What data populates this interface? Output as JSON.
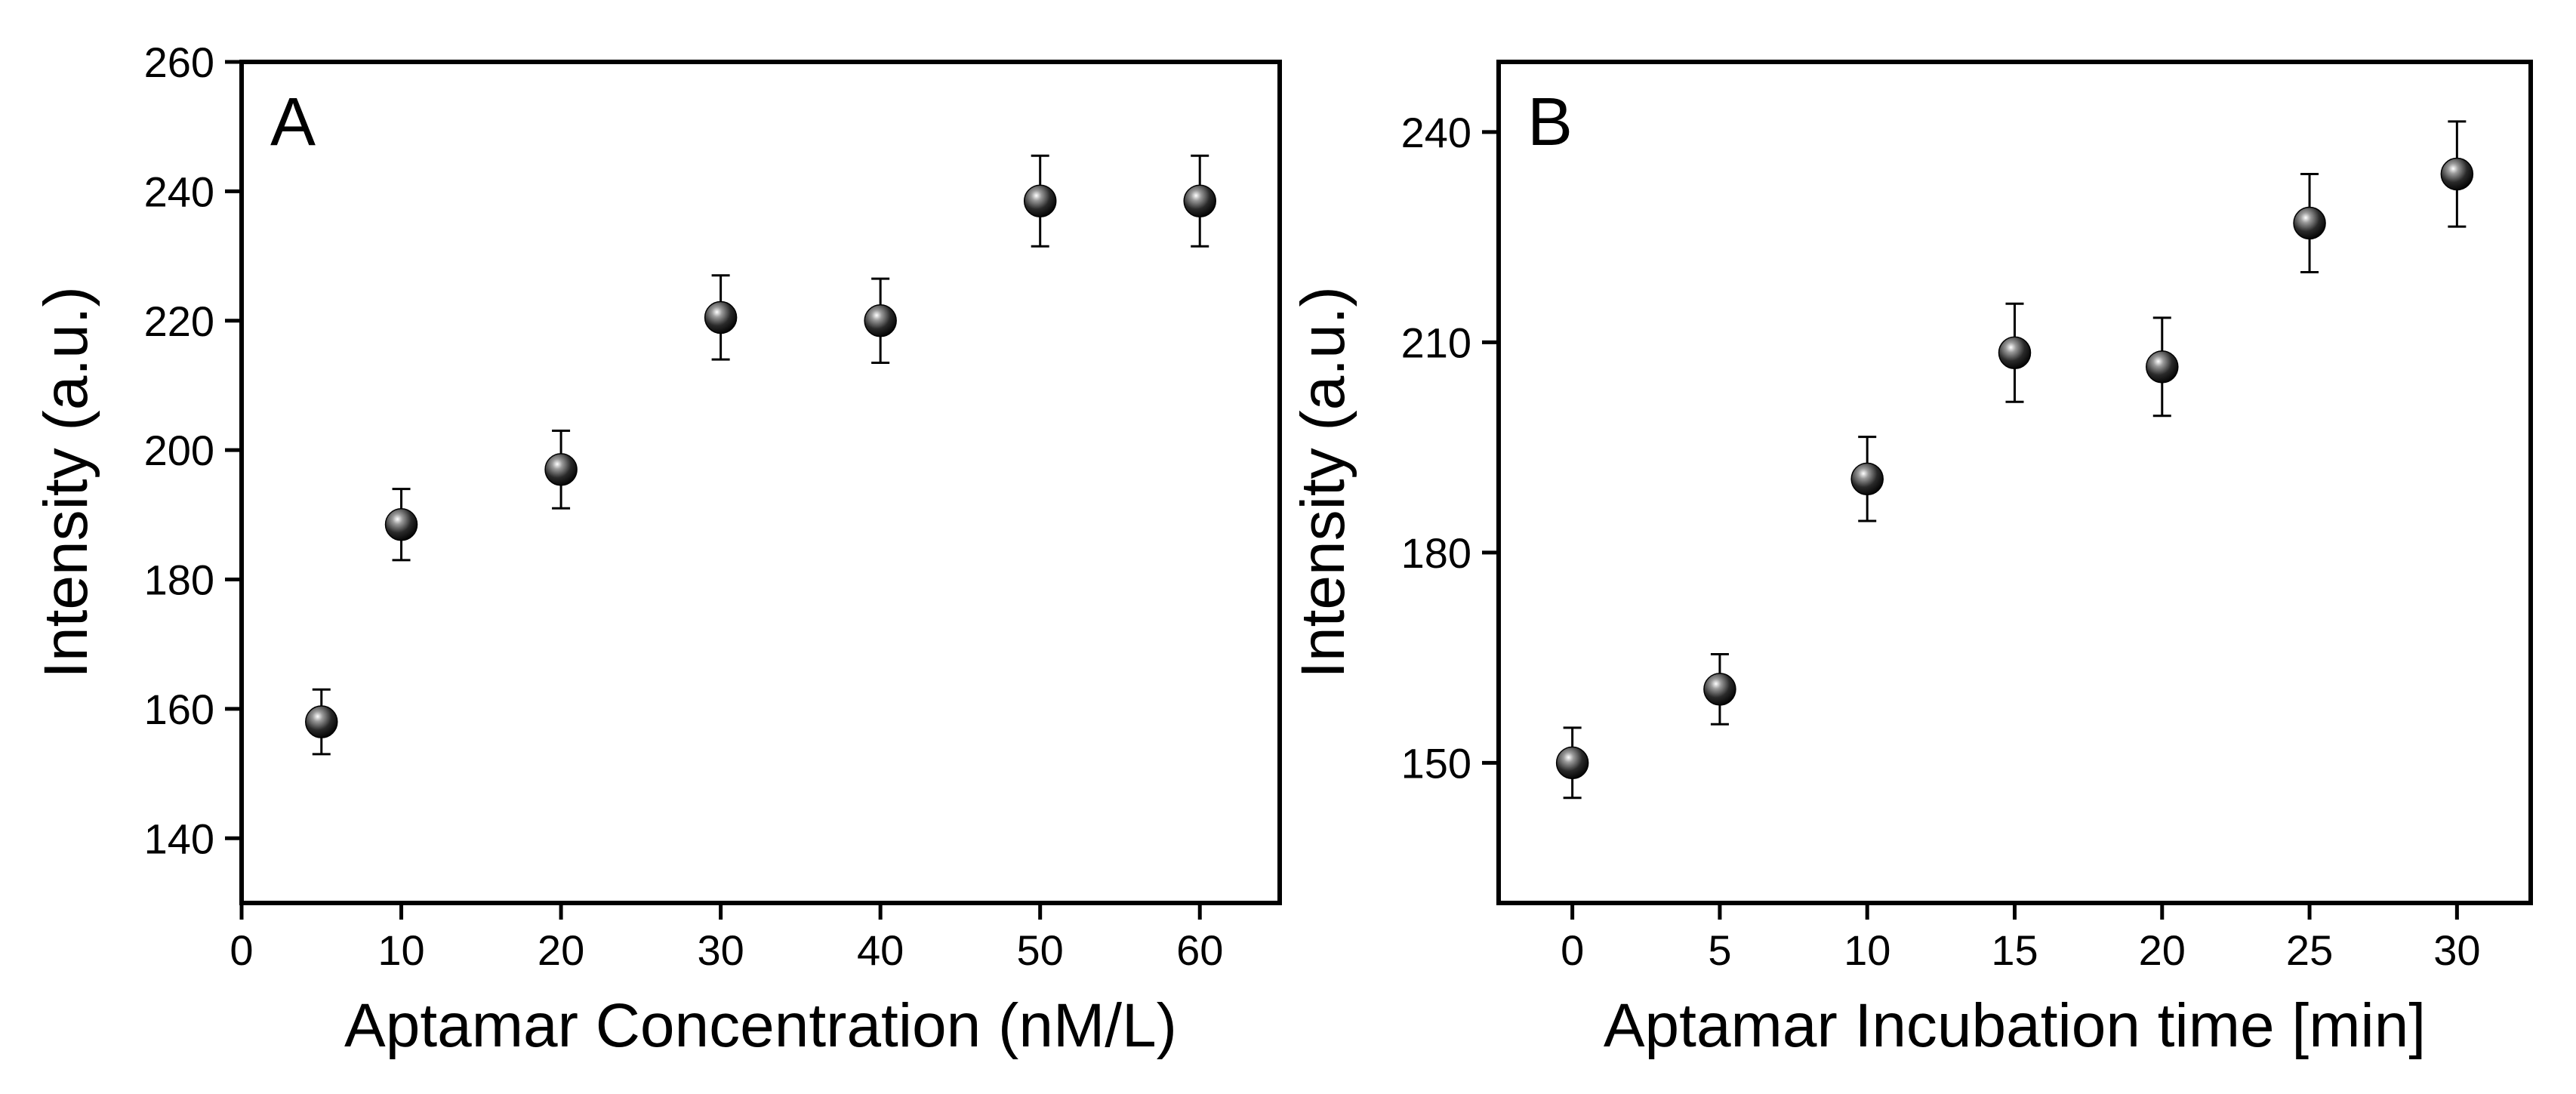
{
  "chart_data": [
    {
      "type": "scatter",
      "panel_label": "A",
      "xlabel": "Aptamar Concentration (nM/L)",
      "ylabel": "Intensity (a.u.)",
      "xlim": [
        0,
        65
      ],
      "ylim": [
        130,
        260
      ],
      "xticks": [
        0,
        10,
        20,
        30,
        40,
        50,
        60
      ],
      "yticks": [
        140,
        160,
        180,
        200,
        220,
        240,
        260
      ],
      "x": [
        5,
        10,
        20,
        30,
        40,
        50,
        60
      ],
      "y": [
        158,
        188.5,
        197,
        220.5,
        220,
        238.5,
        238.5
      ],
      "err": [
        5,
        5.5,
        6,
        6.5,
        6.5,
        7,
        7
      ]
    },
    {
      "type": "scatter",
      "panel_label": "B",
      "xlabel": "Aptamar Incubation time [min]",
      "ylabel": "Intensity (a.u.)",
      "xlim": [
        -2.5,
        32.5
      ],
      "ylim": [
        130,
        250
      ],
      "xticks": [
        0,
        5,
        10,
        15,
        20,
        25,
        30
      ],
      "yticks": [
        150,
        180,
        210,
        240
      ],
      "x": [
        0,
        5,
        10,
        15,
        20,
        25,
        30
      ],
      "y": [
        150,
        160.5,
        190.5,
        208.5,
        206.5,
        227,
        234
      ],
      "err": [
        5,
        5,
        6,
        7,
        7,
        7,
        7.5
      ]
    }
  ]
}
